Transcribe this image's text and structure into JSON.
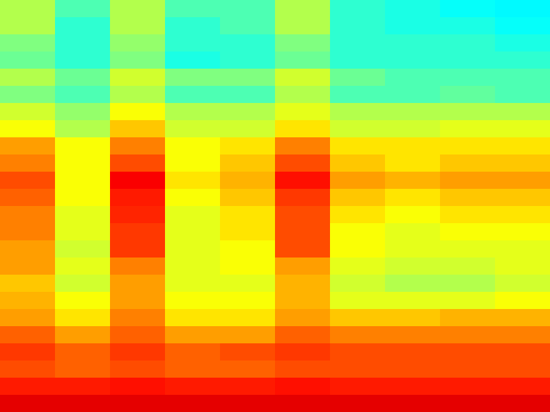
{
  "chart_data": {
    "type": "heatmap",
    "tick_labels": false,
    "zlim": [
      0,
      1
    ],
    "cells": [
      [
        0.55,
        0.45,
        0.55,
        0.45,
        0.45,
        0.55,
        0.42,
        0.4,
        0.38,
        0.37
      ],
      [
        0.55,
        0.42,
        0.55,
        0.42,
        0.45,
        0.55,
        0.42,
        0.4,
        0.4,
        0.38
      ],
      [
        0.5,
        0.42,
        0.52,
        0.42,
        0.42,
        0.5,
        0.42,
        0.42,
        0.42,
        0.4
      ],
      [
        0.48,
        0.42,
        0.5,
        0.4,
        0.42,
        0.48,
        0.42,
        0.42,
        0.42,
        0.42
      ],
      [
        0.55,
        0.48,
        0.58,
        0.5,
        0.5,
        0.58,
        0.48,
        0.45,
        0.45,
        0.45
      ],
      [
        0.5,
        0.45,
        0.55,
        0.45,
        0.45,
        0.55,
        0.45,
        0.45,
        0.47,
        0.45
      ],
      [
        0.58,
        0.52,
        0.62,
        0.55,
        0.55,
        0.6,
        0.55,
        0.55,
        0.55,
        0.55
      ],
      [
        0.62,
        0.55,
        0.68,
        0.58,
        0.58,
        0.65,
        0.58,
        0.58,
        0.6,
        0.6
      ],
      [
        0.72,
        0.62,
        0.75,
        0.62,
        0.65,
        0.75,
        0.65,
        0.65,
        0.65,
        0.65
      ],
      [
        0.75,
        0.62,
        0.8,
        0.62,
        0.68,
        0.8,
        0.68,
        0.65,
        0.68,
        0.68
      ],
      [
        0.8,
        0.62,
        0.88,
        0.65,
        0.7,
        0.86,
        0.72,
        0.7,
        0.72,
        0.72
      ],
      [
        0.78,
        0.62,
        0.85,
        0.62,
        0.68,
        0.82,
        0.68,
        0.65,
        0.68,
        0.68
      ],
      [
        0.75,
        0.6,
        0.84,
        0.6,
        0.65,
        0.8,
        0.65,
        0.62,
        0.65,
        0.65
      ],
      [
        0.75,
        0.6,
        0.82,
        0.6,
        0.65,
        0.8,
        0.62,
        0.6,
        0.62,
        0.62
      ],
      [
        0.72,
        0.58,
        0.82,
        0.6,
        0.62,
        0.8,
        0.62,
        0.6,
        0.6,
        0.6
      ],
      [
        0.72,
        0.6,
        0.75,
        0.6,
        0.62,
        0.72,
        0.6,
        0.58,
        0.58,
        0.6
      ],
      [
        0.68,
        0.58,
        0.72,
        0.6,
        0.6,
        0.7,
        0.58,
        0.55,
        0.55,
        0.58
      ],
      [
        0.7,
        0.62,
        0.72,
        0.62,
        0.62,
        0.7,
        0.6,
        0.6,
        0.6,
        0.62
      ],
      [
        0.72,
        0.65,
        0.75,
        0.65,
        0.65,
        0.72,
        0.68,
        0.68,
        0.7,
        0.7
      ],
      [
        0.78,
        0.72,
        0.78,
        0.72,
        0.72,
        0.78,
        0.75,
        0.75,
        0.75,
        0.75
      ],
      [
        0.82,
        0.78,
        0.82,
        0.78,
        0.8,
        0.82,
        0.8,
        0.8,
        0.8,
        0.8
      ],
      [
        0.8,
        0.78,
        0.8,
        0.78,
        0.78,
        0.8,
        0.8,
        0.8,
        0.8,
        0.8
      ],
      [
        0.85,
        0.85,
        0.86,
        0.85,
        0.85,
        0.86,
        0.85,
        0.85,
        0.85,
        0.85
      ],
      [
        0.9,
        0.9,
        0.9,
        0.9,
        0.9,
        0.9,
        0.9,
        0.9,
        0.9,
        0.9
      ]
    ]
  }
}
